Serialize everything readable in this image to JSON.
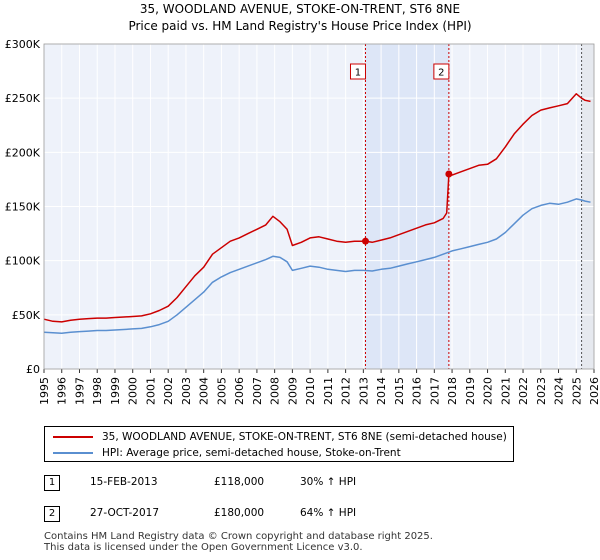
{
  "chart_data": {
    "type": "line",
    "title": "35, WOODLAND AVENUE, STOKE-ON-TRENT, ST6 8NE",
    "subtitle": "Price paid vs. HM Land Registry's House Price Index (HPI)",
    "xlabel": "",
    "ylabel": "",
    "xlim": [
      1995,
      2026
    ],
    "ylim": [
      0,
      300000
    ],
    "x_ticks": [
      "1995",
      "1996",
      "1997",
      "1998",
      "1999",
      "2000",
      "2001",
      "2002",
      "2003",
      "2004",
      "2005",
      "2006",
      "2007",
      "2008",
      "2009",
      "2010",
      "2011",
      "2012",
      "2013",
      "2014",
      "2015",
      "2016",
      "2017",
      "2018",
      "2019",
      "2020",
      "2021",
      "2022",
      "2023",
      "2024",
      "2025",
      "2026"
    ],
    "y_ticks": [
      {
        "value": 0,
        "label": "£0"
      },
      {
        "value": 50000,
        "label": "£50K"
      },
      {
        "value": 100000,
        "label": "£100K"
      },
      {
        "value": 150000,
        "label": "£150K"
      },
      {
        "value": 200000,
        "label": "£200K"
      },
      {
        "value": 250000,
        "label": "£250K"
      },
      {
        "value": 300000,
        "label": "£300K"
      }
    ],
    "grid": true,
    "highlight_range": [
      2013.12,
      2017.82
    ],
    "projection_start": 2025.3,
    "series": [
      {
        "name": "35, WOODLAND AVENUE, STOKE-ON-TRENT, ST6 8NE (semi-detached house)",
        "color": "#cc0000",
        "x": [
          1995.0,
          1995.5,
          1996.0,
          1996.5,
          1997.0,
          1997.5,
          1998.0,
          1998.5,
          1999.0,
          1999.5,
          2000.0,
          2000.5,
          2001.0,
          2001.5,
          2002.0,
          2002.5,
          2003.0,
          2003.5,
          2004.0,
          2004.5,
          2005.0,
          2005.5,
          2006.0,
          2006.5,
          2007.0,
          2007.5,
          2007.9,
          2008.3,
          2008.7,
          2009.0,
          2009.5,
          2010.0,
          2010.5,
          2011.0,
          2011.5,
          2012.0,
          2012.5,
          2013.0,
          2013.12,
          2013.5,
          2014.0,
          2014.5,
          2015.0,
          2015.5,
          2016.0,
          2016.5,
          2017.0,
          2017.5,
          2017.7,
          2017.82,
          2018.0,
          2018.5,
          2019.0,
          2019.5,
          2020.0,
          2020.5,
          2021.0,
          2021.5,
          2022.0,
          2022.5,
          2023.0,
          2023.5,
          2024.0,
          2024.5,
          2025.0,
          2025.3,
          2025.5,
          2025.8
        ],
        "values": [
          46000,
          44000,
          43500,
          45000,
          46000,
          46500,
          47000,
          47000,
          47500,
          48000,
          48500,
          49000,
          51000,
          54000,
          58000,
          66000,
          76000,
          86000,
          94000,
          106000,
          112000,
          118000,
          121000,
          125000,
          129000,
          133000,
          141000,
          136000,
          129000,
          114000,
          117000,
          121000,
          122000,
          120000,
          118000,
          117000,
          118000,
          118000,
          118000,
          117000,
          119000,
          121000,
          124000,
          127000,
          130000,
          133000,
          135000,
          139000,
          144000,
          180000,
          179000,
          182000,
          185000,
          188000,
          189000,
          194000,
          205000,
          217000,
          226000,
          234000,
          239000,
          241000,
          243000,
          245000,
          254000,
          250000,
          248000,
          247000
        ]
      },
      {
        "name": "HPI: Average price, semi-detached house, Stoke-on-Trent",
        "color": "#5a8fd0",
        "x": [
          1995.0,
          1995.5,
          1996.0,
          1996.5,
          1997.0,
          1997.5,
          1998.0,
          1998.5,
          1999.0,
          1999.5,
          2000.0,
          2000.5,
          2001.0,
          2001.5,
          2002.0,
          2002.5,
          2003.0,
          2003.5,
          2004.0,
          2004.5,
          2005.0,
          2005.5,
          2006.0,
          2006.5,
          2007.0,
          2007.5,
          2007.9,
          2008.3,
          2008.7,
          2009.0,
          2009.5,
          2010.0,
          2010.5,
          2011.0,
          2011.5,
          2012.0,
          2012.5,
          2013.0,
          2013.5,
          2014.0,
          2014.5,
          2015.0,
          2015.5,
          2016.0,
          2016.5,
          2017.0,
          2017.5,
          2018.0,
          2018.5,
          2019.0,
          2019.5,
          2020.0,
          2020.5,
          2021.0,
          2021.5,
          2022.0,
          2022.5,
          2023.0,
          2023.5,
          2024.0,
          2024.5,
          2025.0,
          2025.3,
          2025.5,
          2025.8
        ],
        "values": [
          34000,
          33500,
          33000,
          34000,
          34500,
          35000,
          35500,
          35500,
          36000,
          36500,
          37000,
          37500,
          39000,
          41000,
          44000,
          50000,
          57000,
          64000,
          71000,
          80000,
          85000,
          89000,
          92000,
          95000,
          98000,
          101000,
          104000,
          103000,
          99000,
          91000,
          93000,
          95000,
          94000,
          92000,
          91000,
          90000,
          91000,
          91000,
          90500,
          92000,
          93000,
          95000,
          97000,
          99000,
          101000,
          103000,
          106000,
          109000,
          111000,
          113000,
          115000,
          117000,
          120000,
          126000,
          134000,
          142000,
          148000,
          151000,
          153000,
          152000,
          154000,
          157000,
          156000,
          155000,
          154000
        ]
      }
    ],
    "annotations": [
      {
        "label": "1",
        "x": 2013.12,
        "y": 118000
      },
      {
        "label": "2",
        "x": 2017.82,
        "y": 180000
      }
    ]
  },
  "legend": {
    "items": [
      {
        "label": "35, WOODLAND AVENUE, STOKE-ON-TRENT, ST6 8NE (semi-detached house)",
        "color": "#cc0000"
      },
      {
        "label": "HPI: Average price, semi-detached house, Stoke-on-Trent",
        "color": "#5a8fd0"
      }
    ]
  },
  "transactions": [
    {
      "num": "1",
      "date": "15-FEB-2013",
      "price": "£118,000",
      "hpi": "30% ↑ HPI"
    },
    {
      "num": "2",
      "date": "27-OCT-2017",
      "price": "£180,000",
      "hpi": "64% ↑ HPI"
    }
  ],
  "footer": {
    "line1": "Contains HM Land Registry data © Crown copyright and database right 2025.",
    "line2": "This data is licensed under the Open Government Licence v3.0."
  }
}
